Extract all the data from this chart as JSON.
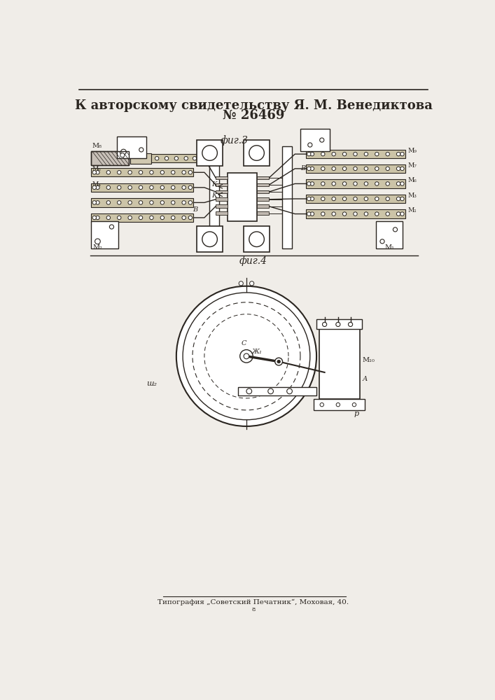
{
  "title_line1": "К авторскому свидетельству Я. М. Венедиктова",
  "title_line2": "№ 26469",
  "fig3_label": "фиг.3",
  "fig4_label": "фиг.4",
  "footer": "Типография „Советский Печатник“, Моховая, 40.",
  "bg_color": "#f0ede8",
  "line_color": "#2a2520",
  "fig_width": 7.07,
  "fig_height": 10.0
}
